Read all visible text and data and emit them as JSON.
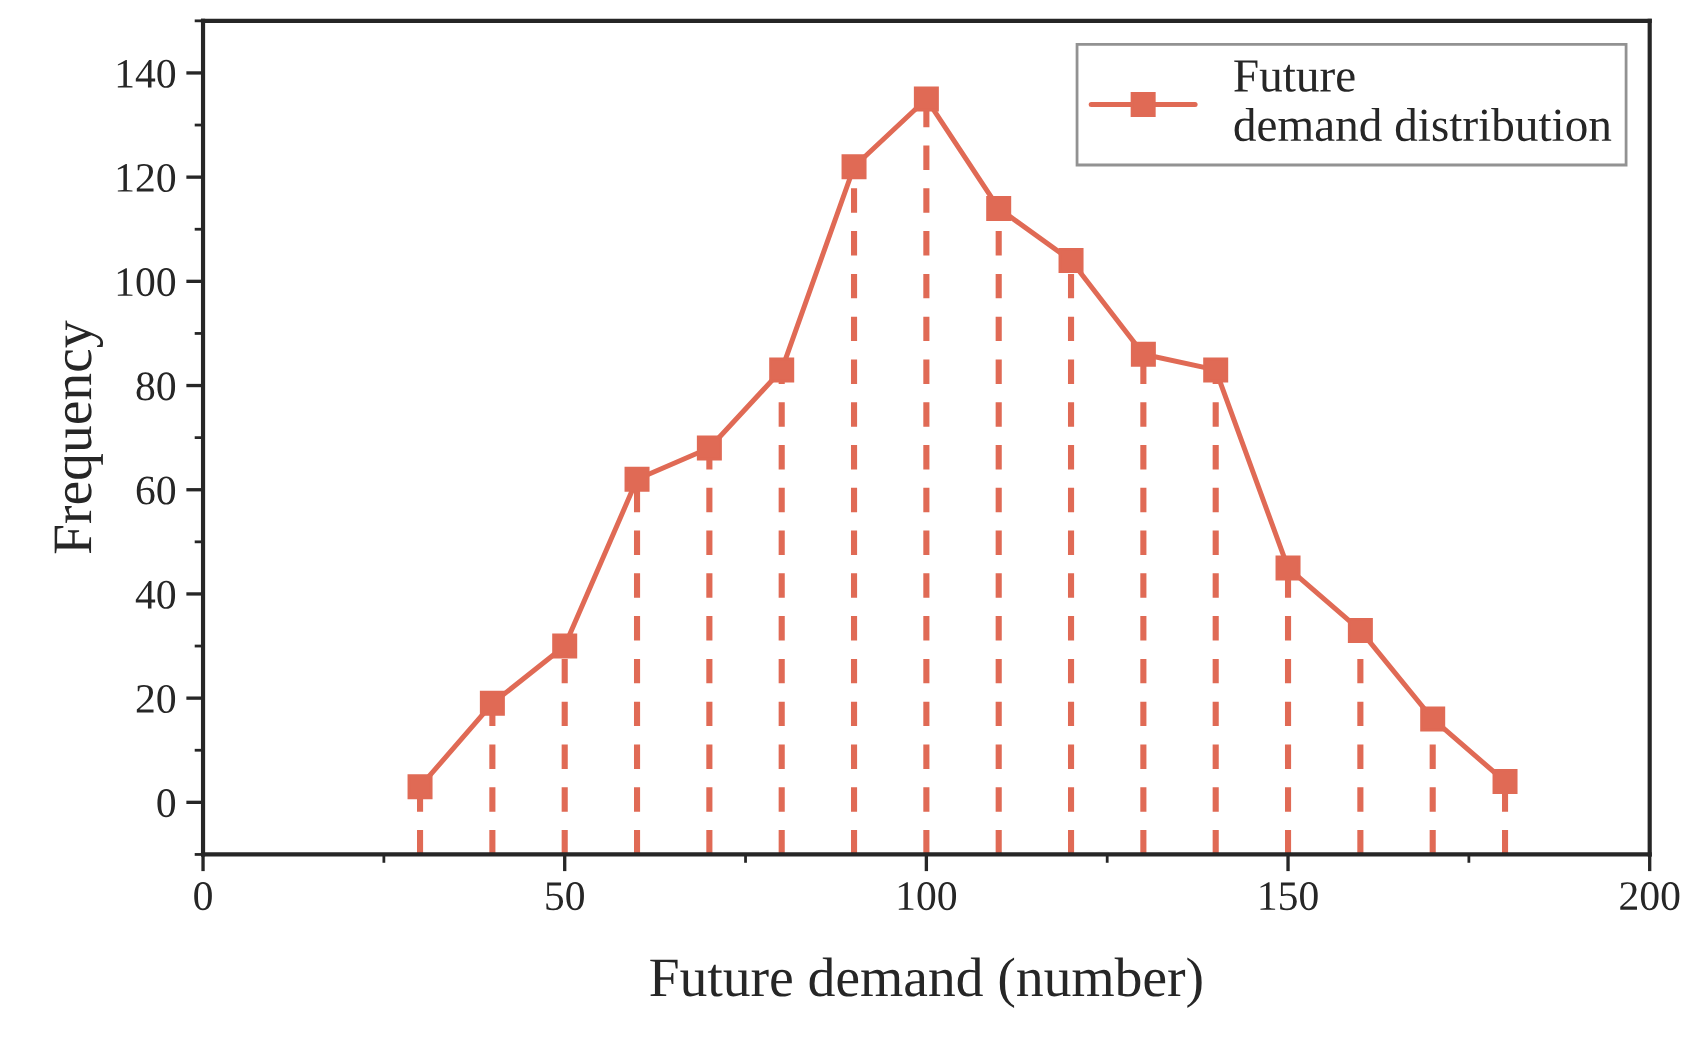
{
  "chart_data": {
    "type": "line",
    "xlabel": "Future demand (number)",
    "ylabel": "Frequency",
    "x": [
      30,
      40,
      50,
      60,
      70,
      80,
      90,
      100,
      110,
      120,
      130,
      140,
      150,
      160,
      170,
      180
    ],
    "series": [
      {
        "name": "Future\ndemand distribution",
        "color": "#e06a55",
        "marker": "square",
        "line_style": "solid",
        "values": [
          3,
          19,
          30,
          62,
          68,
          83,
          122,
          135,
          114,
          104,
          86,
          83,
          45,
          33,
          16,
          4
        ],
        "errors": [
          [
            -10,
            3
          ],
          [
            -10,
            19
          ],
          [
            -10,
            30
          ],
          [
            -10,
            62
          ],
          [
            -10,
            68
          ],
          [
            -10,
            83
          ],
          [
            -10,
            122
          ],
          [
            -10,
            135
          ],
          [
            -10,
            114
          ],
          [
            -10,
            104
          ],
          [
            -10,
            86
          ],
          [
            -10,
            83
          ],
          [
            -10,
            45
          ],
          [
            -10,
            33
          ],
          [
            -10,
            16
          ],
          [
            -10,
            4
          ]
        ]
      }
    ],
    "xlim": [
      0,
      200
    ],
    "xticks": [
      0,
      50,
      100,
      150,
      200
    ],
    "ylim": [
      -10,
      150
    ],
    "yticks": [
      0,
      20,
      40,
      60,
      80,
      100,
      120,
      140
    ],
    "grid": false,
    "legend": "top right"
  }
}
